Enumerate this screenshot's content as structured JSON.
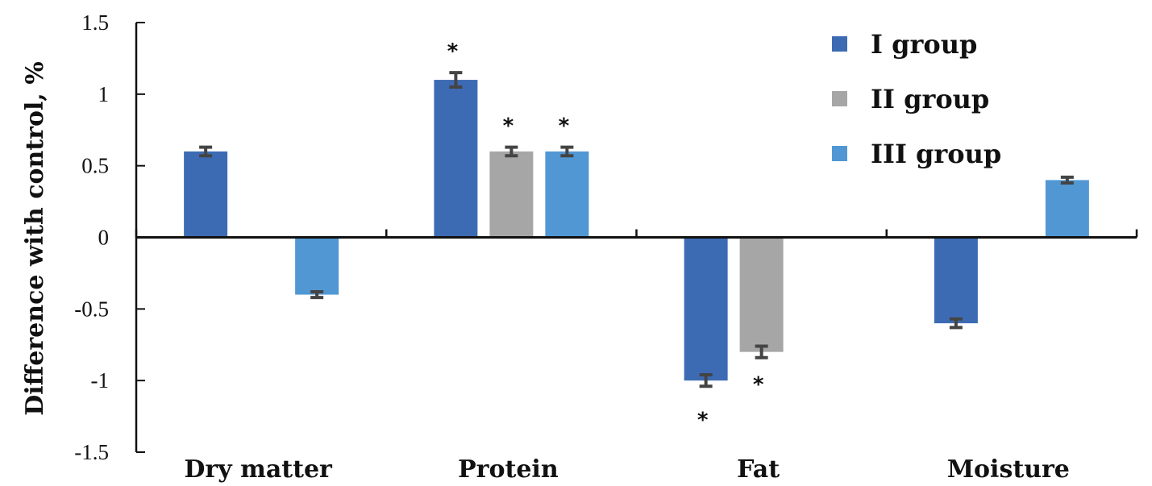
{
  "chart_data": {
    "type": "bar",
    "title": "",
    "xlabel": "",
    "ylabel": "Difference with control, %",
    "ylim": [
      -1.5,
      1.5
    ],
    "yticks": [
      "1.5",
      "1",
      "0.5",
      "0",
      "-0.5",
      "-1",
      "-1.5"
    ],
    "ytick_values": [
      1.5,
      1,
      0.5,
      0,
      -0.5,
      -1,
      -1.5
    ],
    "categories": [
      "Dry matter",
      "Protein",
      "Fat",
      "Moisture"
    ],
    "series": [
      {
        "name": "I group",
        "color": "#3d6bb3",
        "values": [
          0.6,
          1.1,
          -1.0,
          -0.6
        ],
        "errors": [
          0.03,
          0.05,
          0.04,
          0.03
        ],
        "significant": [
          false,
          true,
          true,
          false
        ]
      },
      {
        "name": "II group",
        "color": "#a6a6a6",
        "values": [
          0,
          0.6,
          -0.8,
          0
        ],
        "errors": [
          0,
          0.03,
          0.04,
          0
        ],
        "significant": [
          false,
          true,
          true,
          false
        ]
      },
      {
        "name": "III group",
        "color": "#5197d3",
        "values": [
          -0.4,
          0.6,
          0,
          0.4
        ],
        "errors": [
          0.02,
          0.03,
          0,
          0.02
        ],
        "significant": [
          false,
          true,
          false,
          false
        ]
      }
    ],
    "significance_marker": "*",
    "legend_position": "top-right",
    "grid": false
  }
}
